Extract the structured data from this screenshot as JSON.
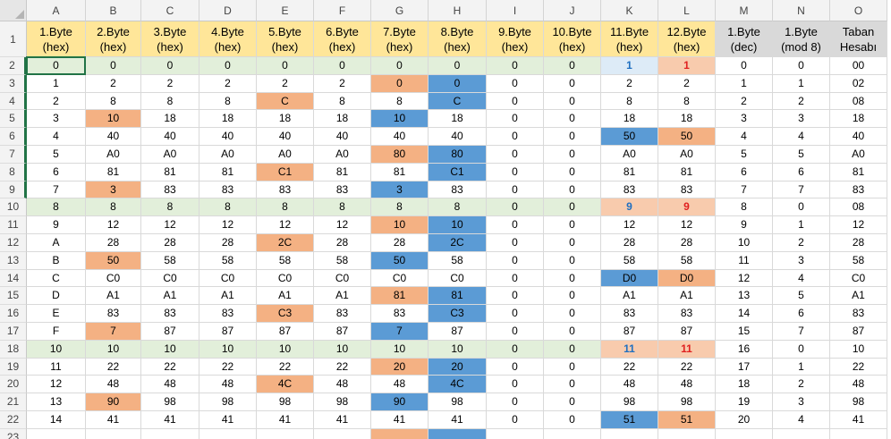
{
  "columns": [
    "A",
    "B",
    "C",
    "D",
    "E",
    "F",
    "G",
    "H",
    "I",
    "J",
    "K",
    "L",
    "M",
    "N",
    "O"
  ],
  "header_labels": [
    "1.Byte\n(hex)",
    "2.Byte\n(hex)",
    "3.Byte\n(hex)",
    "4.Byte\n(hex)",
    "5.Byte\n(hex)",
    "6.Byte\n(hex)",
    "7.Byte\n(hex)",
    "8.Byte\n(hex)",
    "9.Byte\n(hex)",
    "10.Byte\n(hex)",
    "11.Byte\n(hex)",
    "12.Byte\n(hex)",
    "1.Byte\n(dec)",
    "1.Byte\n(mod 8)",
    "Taban\nHesabı"
  ],
  "header_colors": [
    "#ffe699",
    "#ffe699",
    "#ffe699",
    "#ffe699",
    "#ffe699",
    "#ffe699",
    "#ffe699",
    "#ffe699",
    "#ffe699",
    "#ffe699",
    "#ffe699",
    "#ffe699",
    "#d9d9d9",
    "#d9d9d9",
    "#d9d9d9"
  ],
  "colors": {
    "orange": "#f4b183",
    "blue": "#5b9bd5",
    "green": "#e2efda",
    "light_blue": "#ddebf7",
    "light_orange": "#f8cbad",
    "selection": "#217346"
  },
  "rows": [
    {
      "num": "2",
      "cells": [
        "0",
        "0",
        "0",
        "0",
        "0",
        "0",
        "0",
        "0",
        "0",
        "0",
        "1",
        "1",
        "0",
        "0",
        "00"
      ],
      "fill": [
        "green",
        "green",
        "green",
        "green",
        "green",
        "green",
        "green",
        "green",
        "green",
        "green",
        "light_blue",
        "light_orange",
        "",
        "",
        ""
      ],
      "style": [
        "",
        "",
        "",
        "",
        "",
        "",
        "",
        "",
        "",
        "",
        "blue",
        "red",
        "",
        "",
        ""
      ]
    },
    {
      "num": "3",
      "cells": [
        "1",
        "2",
        "2",
        "2",
        "2",
        "2",
        "0",
        "0",
        "0",
        "0",
        "2",
        "2",
        "1",
        "1",
        "02"
      ],
      "fill": [
        "",
        "",
        "",
        "",
        "",
        "",
        "orange",
        "blue",
        "",
        "",
        "",
        "",
        "",
        "",
        ""
      ],
      "style": []
    },
    {
      "num": "4",
      "cells": [
        "2",
        "8",
        "8",
        "8",
        "C",
        "8",
        "8",
        "C",
        "0",
        "0",
        "8",
        "8",
        "2",
        "2",
        "08"
      ],
      "fill": [
        "",
        "",
        "",
        "",
        "orange",
        "",
        "",
        "blue",
        "",
        "",
        "",
        "",
        "",
        "",
        ""
      ],
      "style": []
    },
    {
      "num": "5",
      "cells": [
        "3",
        "10",
        "18",
        "18",
        "18",
        "18",
        "10",
        "18",
        "0",
        "0",
        "18",
        "18",
        "3",
        "3",
        "18"
      ],
      "fill": [
        "",
        "orange",
        "",
        "",
        "",
        "",
        "blue",
        "",
        "",
        "",
        "",
        "",
        "",
        "",
        ""
      ],
      "style": []
    },
    {
      "num": "6",
      "cells": [
        "4",
        "40",
        "40",
        "40",
        "40",
        "40",
        "40",
        "40",
        "0",
        "0",
        "50",
        "50",
        "4",
        "4",
        "40"
      ],
      "fill": [
        "",
        "",
        "",
        "",
        "",
        "",
        "",
        "",
        "",
        "",
        "blue",
        "orange",
        "",
        "",
        ""
      ],
      "style": []
    },
    {
      "num": "7",
      "cells": [
        "5",
        "A0",
        "A0",
        "A0",
        "A0",
        "A0",
        "80",
        "80",
        "0",
        "0",
        "A0",
        "A0",
        "5",
        "5",
        "A0"
      ],
      "fill": [
        "",
        "",
        "",
        "",
        "",
        "",
        "orange",
        "blue",
        "",
        "",
        "",
        "",
        "",
        "",
        ""
      ],
      "style": []
    },
    {
      "num": "8",
      "cells": [
        "6",
        "81",
        "81",
        "81",
        "C1",
        "81",
        "81",
        "C1",
        "0",
        "0",
        "81",
        "81",
        "6",
        "6",
        "81"
      ],
      "fill": [
        "",
        "",
        "",
        "",
        "orange",
        "",
        "",
        "blue",
        "",
        "",
        "",
        "",
        "",
        "",
        ""
      ],
      "style": []
    },
    {
      "num": "9",
      "cells": [
        "7",
        "3",
        "83",
        "83",
        "83",
        "83",
        "3",
        "83",
        "0",
        "0",
        "83",
        "83",
        "7",
        "7",
        "83"
      ],
      "fill": [
        "",
        "orange",
        "",
        "",
        "",
        "",
        "blue",
        "",
        "",
        "",
        "",
        "",
        "",
        "",
        ""
      ],
      "style": []
    },
    {
      "num": "10",
      "cells": [
        "8",
        "8",
        "8",
        "8",
        "8",
        "8",
        "8",
        "8",
        "0",
        "0",
        "9",
        "9",
        "8",
        "0",
        "08"
      ],
      "fill": [
        "green",
        "green",
        "green",
        "green",
        "green",
        "green",
        "green",
        "green",
        "green",
        "green",
        "light_orange",
        "light_orange",
        "",
        "",
        ""
      ],
      "style": [
        "",
        "",
        "",
        "",
        "",
        "",
        "",
        "",
        "",
        "",
        "blue",
        "red",
        "",
        "",
        ""
      ]
    },
    {
      "num": "11",
      "cells": [
        "9",
        "12",
        "12",
        "12",
        "12",
        "12",
        "10",
        "10",
        "0",
        "0",
        "12",
        "12",
        "9",
        "1",
        "12"
      ],
      "fill": [
        "",
        "",
        "",
        "",
        "",
        "",
        "orange",
        "blue",
        "",
        "",
        "",
        "",
        "",
        "",
        ""
      ],
      "style": []
    },
    {
      "num": "12",
      "cells": [
        "A",
        "28",
        "28",
        "28",
        "2C",
        "28",
        "28",
        "2C",
        "0",
        "0",
        "28",
        "28",
        "10",
        "2",
        "28"
      ],
      "fill": [
        "",
        "",
        "",
        "",
        "orange",
        "",
        "",
        "blue",
        "",
        "",
        "",
        "",
        "",
        "",
        ""
      ],
      "style": []
    },
    {
      "num": "13",
      "cells": [
        "B",
        "50",
        "58",
        "58",
        "58",
        "58",
        "50",
        "58",
        "0",
        "0",
        "58",
        "58",
        "11",
        "3",
        "58"
      ],
      "fill": [
        "",
        "orange",
        "",
        "",
        "",
        "",
        "blue",
        "",
        "",
        "",
        "",
        "",
        "",
        "",
        ""
      ],
      "style": []
    },
    {
      "num": "14",
      "cells": [
        "C",
        "C0",
        "C0",
        "C0",
        "C0",
        "C0",
        "C0",
        "C0",
        "0",
        "0",
        "D0",
        "D0",
        "12",
        "4",
        "C0"
      ],
      "fill": [
        "",
        "",
        "",
        "",
        "",
        "",
        "",
        "",
        "",
        "",
        "blue",
        "orange",
        "",
        "",
        ""
      ],
      "style": []
    },
    {
      "num": "15",
      "cells": [
        "D",
        "A1",
        "A1",
        "A1",
        "A1",
        "A1",
        "81",
        "81",
        "0",
        "0",
        "A1",
        "A1",
        "13",
        "5",
        "A1"
      ],
      "fill": [
        "",
        "",
        "",
        "",
        "",
        "",
        "orange",
        "blue",
        "",
        "",
        "",
        "",
        "",
        "",
        ""
      ],
      "style": []
    },
    {
      "num": "16",
      "cells": [
        "E",
        "83",
        "83",
        "83",
        "C3",
        "83",
        "83",
        "C3",
        "0",
        "0",
        "83",
        "83",
        "14",
        "6",
        "83"
      ],
      "fill": [
        "",
        "",
        "",
        "",
        "orange",
        "",
        "",
        "blue",
        "",
        "",
        "",
        "",
        "",
        "",
        ""
      ],
      "style": []
    },
    {
      "num": "17",
      "cells": [
        "F",
        "7",
        "87",
        "87",
        "87",
        "87",
        "7",
        "87",
        "0",
        "0",
        "87",
        "87",
        "15",
        "7",
        "87"
      ],
      "fill": [
        "",
        "orange",
        "",
        "",
        "",
        "",
        "blue",
        "",
        "",
        "",
        "",
        "",
        "",
        "",
        ""
      ],
      "style": []
    },
    {
      "num": "18",
      "cells": [
        "10",
        "10",
        "10",
        "10",
        "10",
        "10",
        "10",
        "10",
        "0",
        "0",
        "11",
        "11",
        "16",
        "0",
        "10"
      ],
      "fill": [
        "green",
        "green",
        "green",
        "green",
        "green",
        "green",
        "green",
        "green",
        "green",
        "green",
        "light_orange",
        "light_orange",
        "",
        "",
        ""
      ],
      "style": [
        "",
        "",
        "",
        "",
        "",
        "",
        "",
        "",
        "",
        "",
        "blue",
        "red",
        "",
        "",
        ""
      ]
    },
    {
      "num": "19",
      "cells": [
        "11",
        "22",
        "22",
        "22",
        "22",
        "22",
        "20",
        "20",
        "0",
        "0",
        "22",
        "22",
        "17",
        "1",
        "22"
      ],
      "fill": [
        "",
        "",
        "",
        "",
        "",
        "",
        "orange",
        "blue",
        "",
        "",
        "",
        "",
        "",
        "",
        ""
      ],
      "style": []
    },
    {
      "num": "20",
      "cells": [
        "12",
        "48",
        "48",
        "48",
        "4C",
        "48",
        "48",
        "4C",
        "0",
        "0",
        "48",
        "48",
        "18",
        "2",
        "48"
      ],
      "fill": [
        "",
        "",
        "",
        "",
        "orange",
        "",
        "",
        "blue",
        "",
        "",
        "",
        "",
        "",
        "",
        ""
      ],
      "style": []
    },
    {
      "num": "21",
      "cells": [
        "13",
        "90",
        "98",
        "98",
        "98",
        "98",
        "90",
        "98",
        "0",
        "0",
        "98",
        "98",
        "19",
        "3",
        "98"
      ],
      "fill": [
        "",
        "orange",
        "",
        "",
        "",
        "",
        "blue",
        "",
        "",
        "",
        "",
        "",
        "",
        "",
        ""
      ],
      "style": []
    },
    {
      "num": "22",
      "cells": [
        "14",
        "41",
        "41",
        "41",
        "41",
        "41",
        "41",
        "41",
        "0",
        "0",
        "51",
        "51",
        "20",
        "4",
        "41"
      ],
      "fill": [
        "",
        "",
        "",
        "",
        "",
        "",
        "",
        "",
        "",
        "",
        "blue",
        "orange",
        "",
        "",
        ""
      ],
      "style": []
    },
    {
      "num": "23",
      "cells": [
        "",
        "",
        "",
        "",
        "",
        "",
        "",
        "",
        "",
        "",
        "",
        "",
        "",
        "",
        ""
      ],
      "fill": [
        "",
        "",
        "",
        "",
        "",
        "",
        "orange",
        "blue",
        "",
        "",
        "",
        "",
        "",
        "",
        ""
      ],
      "style": []
    }
  ]
}
